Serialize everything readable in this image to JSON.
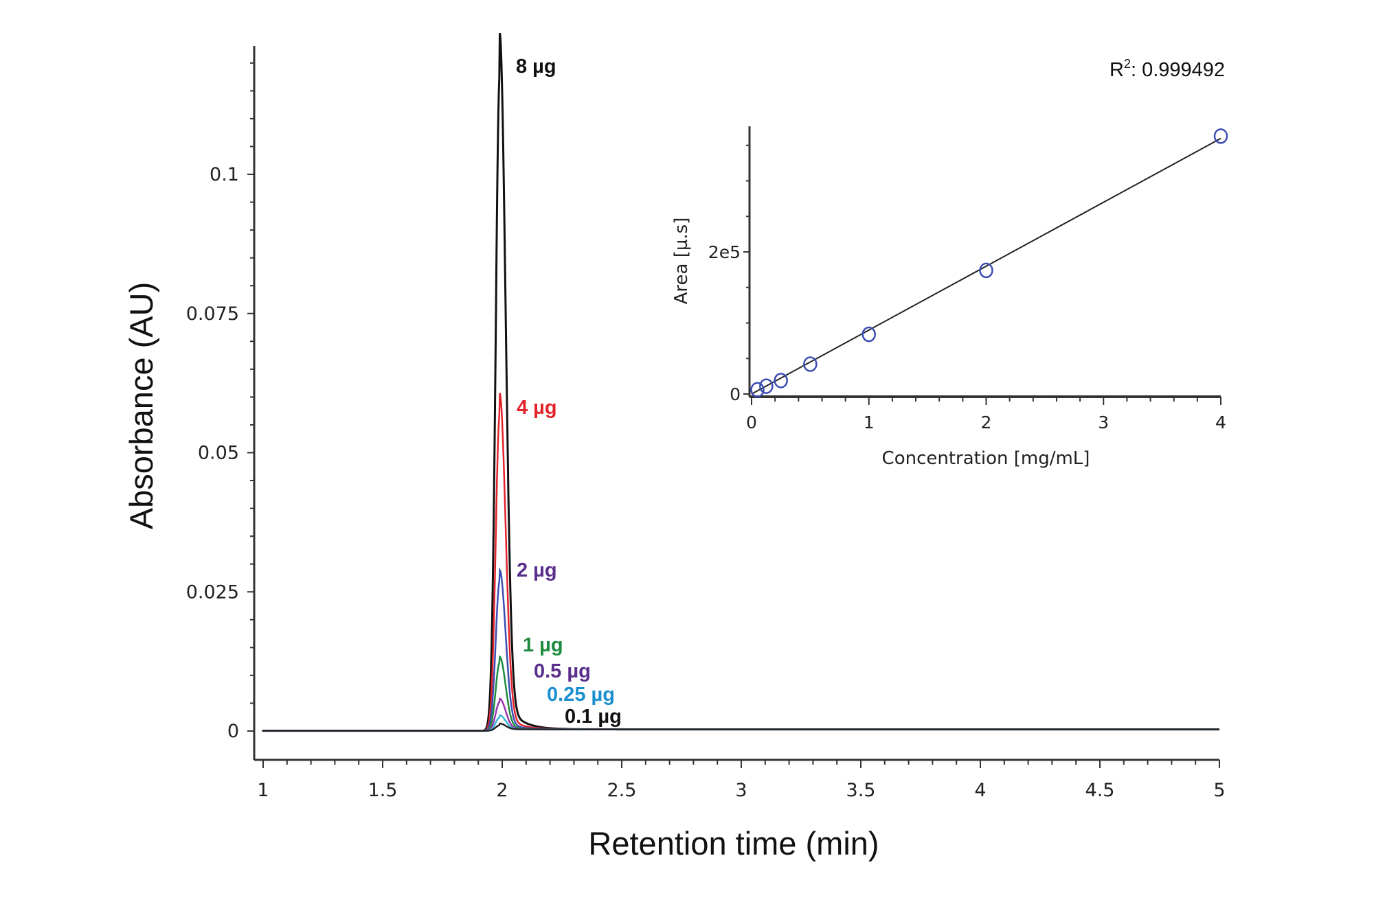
{
  "chart_data": [
    {
      "type": "line",
      "xlabel": "Retention time (min)",
      "ylabel": "Absorbance (AU)",
      "xlim": [
        0.95,
        5
      ],
      "ylim": [
        -0.006,
        0.124
      ],
      "xticks": [
        "1",
        "1.5",
        "2",
        "2.5",
        "3",
        "3.5",
        "4",
        "4.5",
        "5"
      ],
      "yticks": [
        "0",
        "0.025",
        "0.05",
        "0.075",
        "0.1"
      ],
      "grid": false,
      "peak_retention_time": 1.99,
      "series": [
        {
          "name": "8 µg",
          "peak_height": 0.118,
          "color": "#111111",
          "label_color": "#111111"
        },
        {
          "name": "4 µg",
          "peak_height": 0.057,
          "color": "#e3232b",
          "label_color": "#e3232b"
        },
        {
          "name": "2 µg",
          "peak_height": 0.027,
          "color": "#3b4db3",
          "label_color": "#5a2e8c"
        },
        {
          "name": "1 µg",
          "peak_height": 0.0123,
          "color": "#1e8a3e",
          "label_color": "#1e8a3e"
        },
        {
          "name": "0.5 µg",
          "peak_height": 0.0052,
          "color": "#9a34b0",
          "label_color": "#5a2e8c"
        },
        {
          "name": "0.25 µg",
          "peak_height": 0.0024,
          "color": "#3bb6d6",
          "label_color": "#1a8fd0"
        },
        {
          "name": "0.1 µg",
          "peak_height": 0.001,
          "color": "#222222",
          "label_color": "#111111"
        }
      ]
    },
    {
      "type": "scatter",
      "xlabel": "Concentration [mg/mL]",
      "ylabel": "Area [µ.s]",
      "xlim": [
        0,
        4
      ],
      "ylim": [
        0,
        380000
      ],
      "xticks": [
        "0",
        "1",
        "2",
        "3",
        "4"
      ],
      "yticks": [
        {
          "value": 0,
          "label": "0"
        },
        {
          "value": 200000,
          "label": "2e5"
        }
      ],
      "grid": false,
      "marker_color": "#3b4db3",
      "points": [
        {
          "x": 0.05,
          "y": 6000
        },
        {
          "x": 0.125,
          "y": 11000
        },
        {
          "x": 0.25,
          "y": 19000
        },
        {
          "x": 0.5,
          "y": 42000
        },
        {
          "x": 1,
          "y": 84000
        },
        {
          "x": 2,
          "y": 174000
        },
        {
          "x": 4,
          "y": 363000
        }
      ],
      "fit": {
        "type": "linear",
        "r2_label": "R",
        "r2_sup": "2",
        "r2_value": ": 0.999492"
      }
    }
  ]
}
